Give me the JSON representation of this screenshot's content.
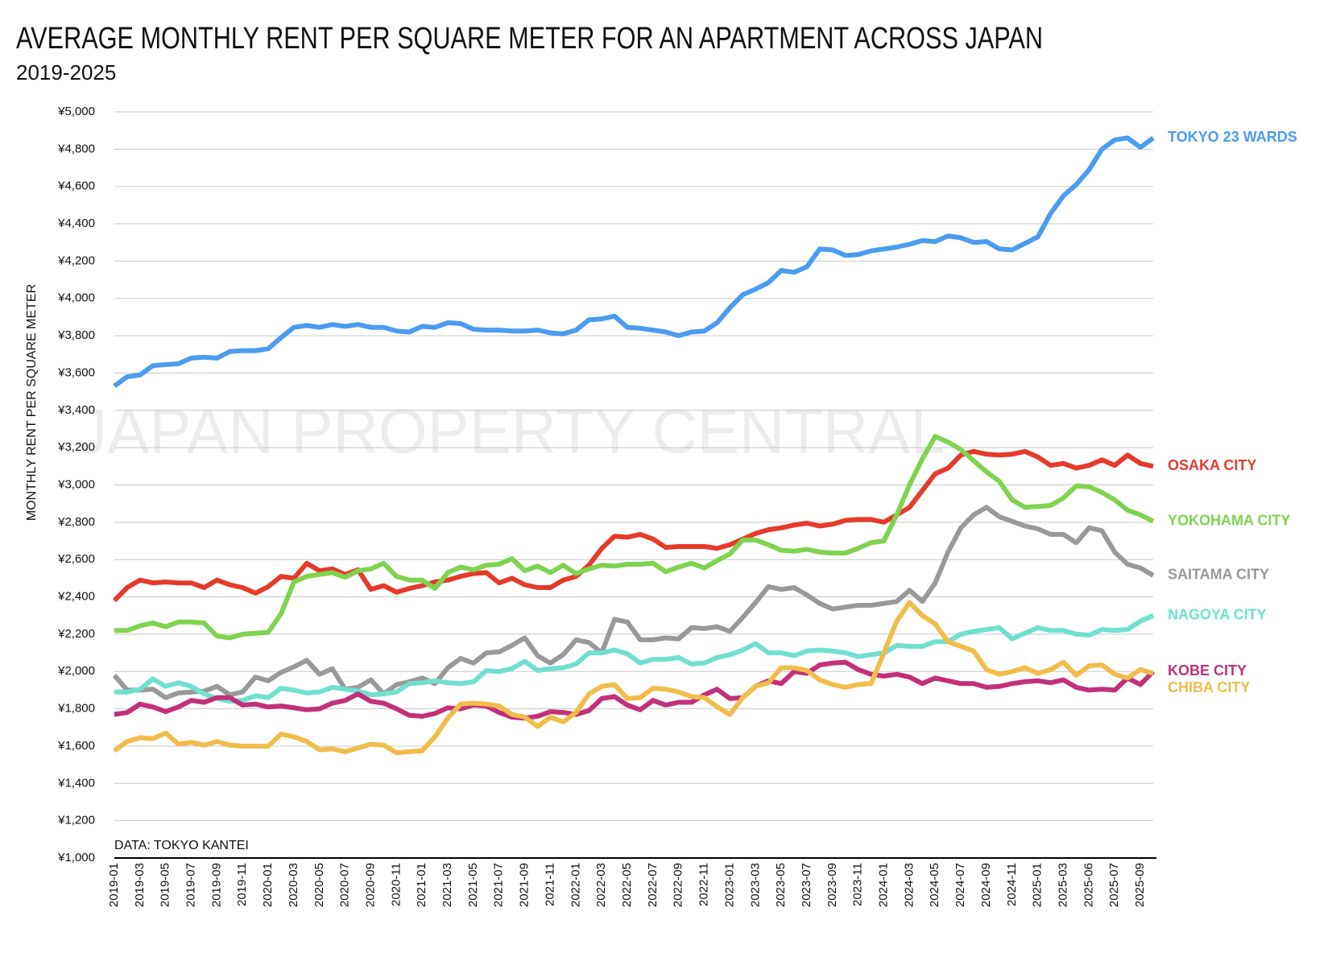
{
  "chart_data": {
    "type": "line",
    "title": "AVERAGE MONTHLY RENT PER SQUARE METER FOR AN APARTMENT ACROSS JAPAN",
    "subtitle": "2019-2025",
    "y_label": "MONTHLY RENT PER SQUARE METER",
    "source": "DATA: TOKYO KANTEI",
    "watermark": "JAPAN PROPERTY CENTRAL",
    "grid": true,
    "ylim": [
      1000,
      5000
    ],
    "yticks": [
      {
        "value": 1000,
        "label": "¥1,000"
      },
      {
        "value": 1200,
        "label": "¥1,200"
      },
      {
        "value": 1400,
        "label": "¥1,400"
      },
      {
        "value": 1600,
        "label": "¥1,600"
      },
      {
        "value": 1800,
        "label": "¥1,800"
      },
      {
        "value": 2000,
        "label": "¥2,000"
      },
      {
        "value": 2200,
        "label": "¥2,200"
      },
      {
        "value": 2400,
        "label": "¥2,400"
      },
      {
        "value": 2600,
        "label": "¥2,600"
      },
      {
        "value": 2800,
        "label": "¥2,800"
      },
      {
        "value": 3000,
        "label": "¥3,000"
      },
      {
        "value": 3200,
        "label": "¥3,200"
      },
      {
        "value": 3400,
        "label": "¥3,400"
      },
      {
        "value": 3600,
        "label": "¥3,600"
      },
      {
        "value": 3800,
        "label": "¥3,800"
      },
      {
        "value": 4000,
        "label": "¥4,000"
      },
      {
        "value": 4200,
        "label": "¥4,200"
      },
      {
        "value": 4400,
        "label": "¥4,400"
      },
      {
        "value": 4600,
        "label": "¥4,600"
      },
      {
        "value": 4800,
        "label": "¥4,800"
      },
      {
        "value": 5000,
        "label": "¥5,000"
      }
    ],
    "categories": [
      "2019-01",
      null,
      "2019-03",
      null,
      "2019-05",
      null,
      "2019-07",
      null,
      "2019-09",
      null,
      "2019-11",
      null,
      "2020-01",
      null,
      "2020-03",
      null,
      "2020-05",
      null,
      "2020-07",
      null,
      "2020-09",
      null,
      "2020-11",
      null,
      "2021-01",
      null,
      "2021-03",
      null,
      "2021-05",
      null,
      "2021-07",
      null,
      "2021-09",
      null,
      "2021-11",
      null,
      "2022-01",
      null,
      "2022-03",
      null,
      "2022-05",
      null,
      "2022-07",
      null,
      "2022-09",
      null,
      "2022-11",
      null,
      "2023-01",
      null,
      "2023-03",
      null,
      "2023-05",
      null,
      "2023-07",
      null,
      "2023-09",
      null,
      "2023-11",
      null,
      "2024-01",
      null,
      "2024-03",
      null,
      "2024-05",
      null,
      "2024-07",
      null,
      "2024-09",
      null,
      "2024-11",
      null,
      "2025-01",
      null,
      "2025-03",
      null,
      "2025-06",
      null,
      "2025-07",
      null,
      "2025-09",
      null
    ],
    "series": [
      {
        "name": "TOKYO 23 WARDS",
        "color": "#4a9cf0",
        "values": [
          3530,
          3580,
          3590,
          3640,
          3645,
          3650,
          3680,
          3685,
          3680,
          3715,
          3720,
          3720,
          3730,
          3790,
          3845,
          3855,
          3845,
          3860,
          3850,
          3860,
          3845,
          3845,
          3825,
          3820,
          3850,
          3845,
          3870,
          3865,
          3835,
          3830,
          3830,
          3825,
          3825,
          3830,
          3815,
          3810,
          3830,
          3885,
          3890,
          3905,
          3845,
          3840,
          3830,
          3820,
          3800,
          3820,
          3825,
          3870,
          3950,
          4020,
          4050,
          4085,
          4150,
          4140,
          4170,
          4265,
          4260,
          4230,
          4235,
          4255,
          4265,
          4275,
          4290,
          4310,
          4305,
          4335,
          4325,
          4300,
          4305,
          4265,
          4260,
          4295,
          4330,
          4455,
          4550,
          4610,
          4690,
          4800,
          4850,
          4860,
          4810,
          4860
        ]
      },
      {
        "name": "OSAKA CITY",
        "color": "#e53a2a",
        "values": [
          2380,
          2450,
          2490,
          2475,
          2480,
          2475,
          2475,
          2450,
          2490,
          2465,
          2450,
          2420,
          2455,
          2510,
          2500,
          2580,
          2540,
          2550,
          2520,
          2545,
          2440,
          2460,
          2425,
          2445,
          2460,
          2480,
          2490,
          2510,
          2525,
          2530,
          2475,
          2500,
          2465,
          2450,
          2450,
          2490,
          2510,
          2570,
          2660,
          2725,
          2720,
          2735,
          2710,
          2665,
          2670,
          2670,
          2670,
          2660,
          2680,
          2710,
          2740,
          2760,
          2770,
          2785,
          2795,
          2780,
          2790,
          2810,
          2815,
          2815,
          2800,
          2840,
          2880,
          2970,
          3060,
          3090,
          3160,
          3180,
          3165,
          3160,
          3165,
          3180,
          3150,
          3105,
          3115,
          3090,
          3105,
          3135,
          3105,
          3160,
          3115,
          3100
        ]
      },
      {
        "name": "YOKOHAMA CITY",
        "color": "#7fd34e",
        "values": [
          2220,
          2220,
          2245,
          2260,
          2240,
          2265,
          2265,
          2260,
          2190,
          2180,
          2200,
          2205,
          2210,
          2310,
          2480,
          2510,
          2520,
          2530,
          2505,
          2540,
          2550,
          2580,
          2510,
          2490,
          2490,
          2445,
          2530,
          2560,
          2545,
          2570,
          2575,
          2605,
          2540,
          2565,
          2530,
          2570,
          2525,
          2550,
          2570,
          2565,
          2575,
          2575,
          2580,
          2535,
          2560,
          2580,
          2555,
          2595,
          2630,
          2705,
          2705,
          2680,
          2650,
          2645,
          2655,
          2640,
          2635,
          2635,
          2660,
          2690,
          2700,
          2840,
          3000,
          3140,
          3260,
          3230,
          3190,
          3130,
          3070,
          3020,
          2920,
          2880,
          2885,
          2890,
          2930,
          2995,
          2990,
          2960,
          2920,
          2865,
          2840,
          2805
        ]
      },
      {
        "name": "SAITAMA CITY",
        "color": "#999999",
        "values": [
          1980,
          1900,
          1900,
          1905,
          1860,
          1885,
          1890,
          1895,
          1920,
          1875,
          1890,
          1970,
          1950,
          1995,
          2025,
          2060,
          1985,
          2015,
          1905,
          1915,
          1955,
          1880,
          1930,
          1945,
          1965,
          1935,
          2020,
          2070,
          2045,
          2100,
          2105,
          2140,
          2180,
          2085,
          2045,
          2090,
          2170,
          2155,
          2100,
          2280,
          2265,
          2170,
          2170,
          2180,
          2175,
          2235,
          2230,
          2240,
          2215,
          2290,
          2370,
          2455,
          2440,
          2450,
          2410,
          2365,
          2335,
          2345,
          2355,
          2355,
          2365,
          2375,
          2435,
          2375,
          2475,
          2640,
          2770,
          2840,
          2880,
          2830,
          2805,
          2780,
          2765,
          2735,
          2735,
          2690,
          2770,
          2755,
          2640,
          2575,
          2555,
          2515
        ]
      },
      {
        "name": "NAGOYA CITY",
        "color": "#6fe0d0",
        "values": [
          1890,
          1890,
          1905,
          1960,
          1920,
          1940,
          1920,
          1880,
          1855,
          1840,
          1845,
          1870,
          1860,
          1910,
          1900,
          1885,
          1890,
          1915,
          1905,
          1895,
          1875,
          1880,
          1890,
          1935,
          1940,
          1950,
          1940,
          1935,
          1945,
          2005,
          2000,
          2015,
          2055,
          2005,
          2015,
          2020,
          2040,
          2100,
          2100,
          2115,
          2095,
          2045,
          2065,
          2065,
          2075,
          2040,
          2045,
          2075,
          2090,
          2115,
          2150,
          2100,
          2100,
          2085,
          2110,
          2115,
          2110,
          2100,
          2080,
          2090,
          2100,
          2140,
          2135,
          2135,
          2160,
          2160,
          2200,
          2215,
          2225,
          2235,
          2175,
          2205,
          2235,
          2220,
          2220,
          2200,
          2195,
          2225,
          2220,
          2225,
          2270,
          2300
        ]
      },
      {
        "name": "KOBE CITY",
        "color": "#c2307a",
        "values": [
          1770,
          1780,
          1825,
          1810,
          1785,
          1810,
          1845,
          1835,
          1860,
          1860,
          1820,
          1825,
          1810,
          1815,
          1805,
          1795,
          1800,
          1830,
          1845,
          1880,
          1840,
          1830,
          1800,
          1765,
          1760,
          1775,
          1805,
          1800,
          1820,
          1815,
          1780,
          1755,
          1750,
          1760,
          1785,
          1780,
          1770,
          1790,
          1855,
          1865,
          1820,
          1795,
          1845,
          1820,
          1835,
          1835,
          1875,
          1905,
          1855,
          1860,
          1920,
          1950,
          1935,
          2000,
          1990,
          2035,
          2045,
          2050,
          2010,
          1985,
          1975,
          1985,
          1970,
          1935,
          1965,
          1950,
          1935,
          1935,
          1915,
          1920,
          1935,
          1945,
          1950,
          1940,
          1955,
          1915,
          1900,
          1905,
          1900,
          1965,
          1930,
          2000
        ]
      },
      {
        "name": "CHIBA CITY",
        "color": "#f0bd4a",
        "values": [
          1575,
          1625,
          1645,
          1640,
          1670,
          1610,
          1620,
          1605,
          1625,
          1605,
          1600,
          1600,
          1600,
          1665,
          1650,
          1625,
          1580,
          1585,
          1570,
          1590,
          1610,
          1605,
          1565,
          1570,
          1575,
          1650,
          1750,
          1825,
          1830,
          1825,
          1815,
          1770,
          1755,
          1705,
          1755,
          1730,
          1780,
          1880,
          1920,
          1930,
          1855,
          1860,
          1910,
          1905,
          1890,
          1865,
          1860,
          1810,
          1770,
          1860,
          1920,
          1940,
          2020,
          2020,
          2005,
          1955,
          1930,
          1915,
          1930,
          1935,
          2100,
          2270,
          2370,
          2300,
          2255,
          2160,
          2135,
          2110,
          2010,
          1985,
          2000,
          2020,
          1990,
          2010,
          2050,
          1980,
          2030,
          2035,
          1985,
          1965,
          2010,
          1990
        ]
      }
    ]
  }
}
